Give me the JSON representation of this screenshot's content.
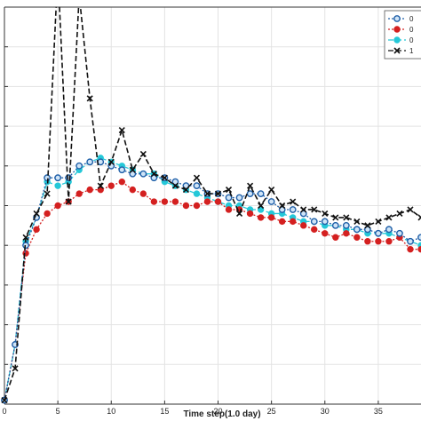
{
  "chart_data": {
    "type": "line",
    "title": "",
    "xlabel": "Time step(1.0 day)",
    "ylabel": "",
    "xlim": [
      0,
      39
    ],
    "ylim": [
      0,
      100
    ],
    "x_ticks": [
      0,
      5,
      10,
      15,
      20,
      25,
      30,
      35
    ],
    "y_ticks": [
      0,
      10,
      20,
      30,
      40,
      50,
      60,
      70,
      80,
      90,
      100
    ],
    "grid": true,
    "legend_position": "top-right",
    "x": [
      0,
      1,
      2,
      3,
      4,
      5,
      6,
      7,
      8,
      9,
      10,
      11,
      12,
      13,
      14,
      15,
      16,
      17,
      18,
      19,
      20,
      21,
      22,
      23,
      24,
      25,
      26,
      27,
      28,
      29,
      30,
      31,
      32,
      33,
      34,
      35,
      36,
      37,
      38,
      39
    ],
    "series": [
      {
        "name": "0",
        "color": "#1f5fa8",
        "marker": "circle-open",
        "line": "dotted",
        "values": [
          1,
          15,
          40,
          47,
          57,
          57,
          57,
          60,
          61,
          61,
          60,
          59,
          58,
          58,
          57,
          57,
          56,
          55,
          55,
          53,
          53,
          52,
          52,
          53,
          53,
          51,
          49,
          49,
          48,
          46,
          46,
          45,
          45,
          44,
          44,
          43,
          44,
          43,
          41,
          42
        ]
      },
      {
        "name": "0",
        "color": "#d42020",
        "marker": "circle-filled",
        "line": "dotted",
        "values": [
          1,
          15,
          38,
          44,
          48,
          50,
          51,
          53,
          54,
          54,
          55,
          56,
          54,
          53,
          51,
          51,
          51,
          50,
          50,
          51,
          51,
          49,
          49,
          48,
          47,
          47,
          46,
          46,
          45,
          44,
          43,
          42,
          43,
          42,
          41,
          41,
          41,
          42,
          39,
          39
        ]
      },
      {
        "name": "0",
        "color": "#25c8d8",
        "marker": "circle-filled",
        "line": "dashed",
        "values": [
          1,
          15,
          41,
          47,
          56,
          55,
          56,
          59,
          61,
          62,
          61,
          60,
          59,
          58,
          58,
          56,
          55,
          54,
          53,
          52,
          51,
          50,
          50,
          49,
          49,
          48,
          48,
          47,
          46,
          46,
          45,
          45,
          44,
          44,
          43,
          43,
          43,
          42,
          41,
          40
        ]
      },
      {
        "name": "1",
        "color": "#111111",
        "marker": "x",
        "line": "dashed",
        "values": [
          1,
          9,
          42,
          48,
          53,
          109,
          51,
          103,
          77,
          55,
          61,
          69,
          59,
          63,
          58,
          57,
          55,
          54,
          57,
          53,
          53,
          54,
          48,
          55,
          50,
          54,
          50,
          51,
          49,
          49,
          48,
          47,
          47,
          46,
          45,
          46,
          47,
          48,
          49,
          47
        ]
      }
    ]
  }
}
